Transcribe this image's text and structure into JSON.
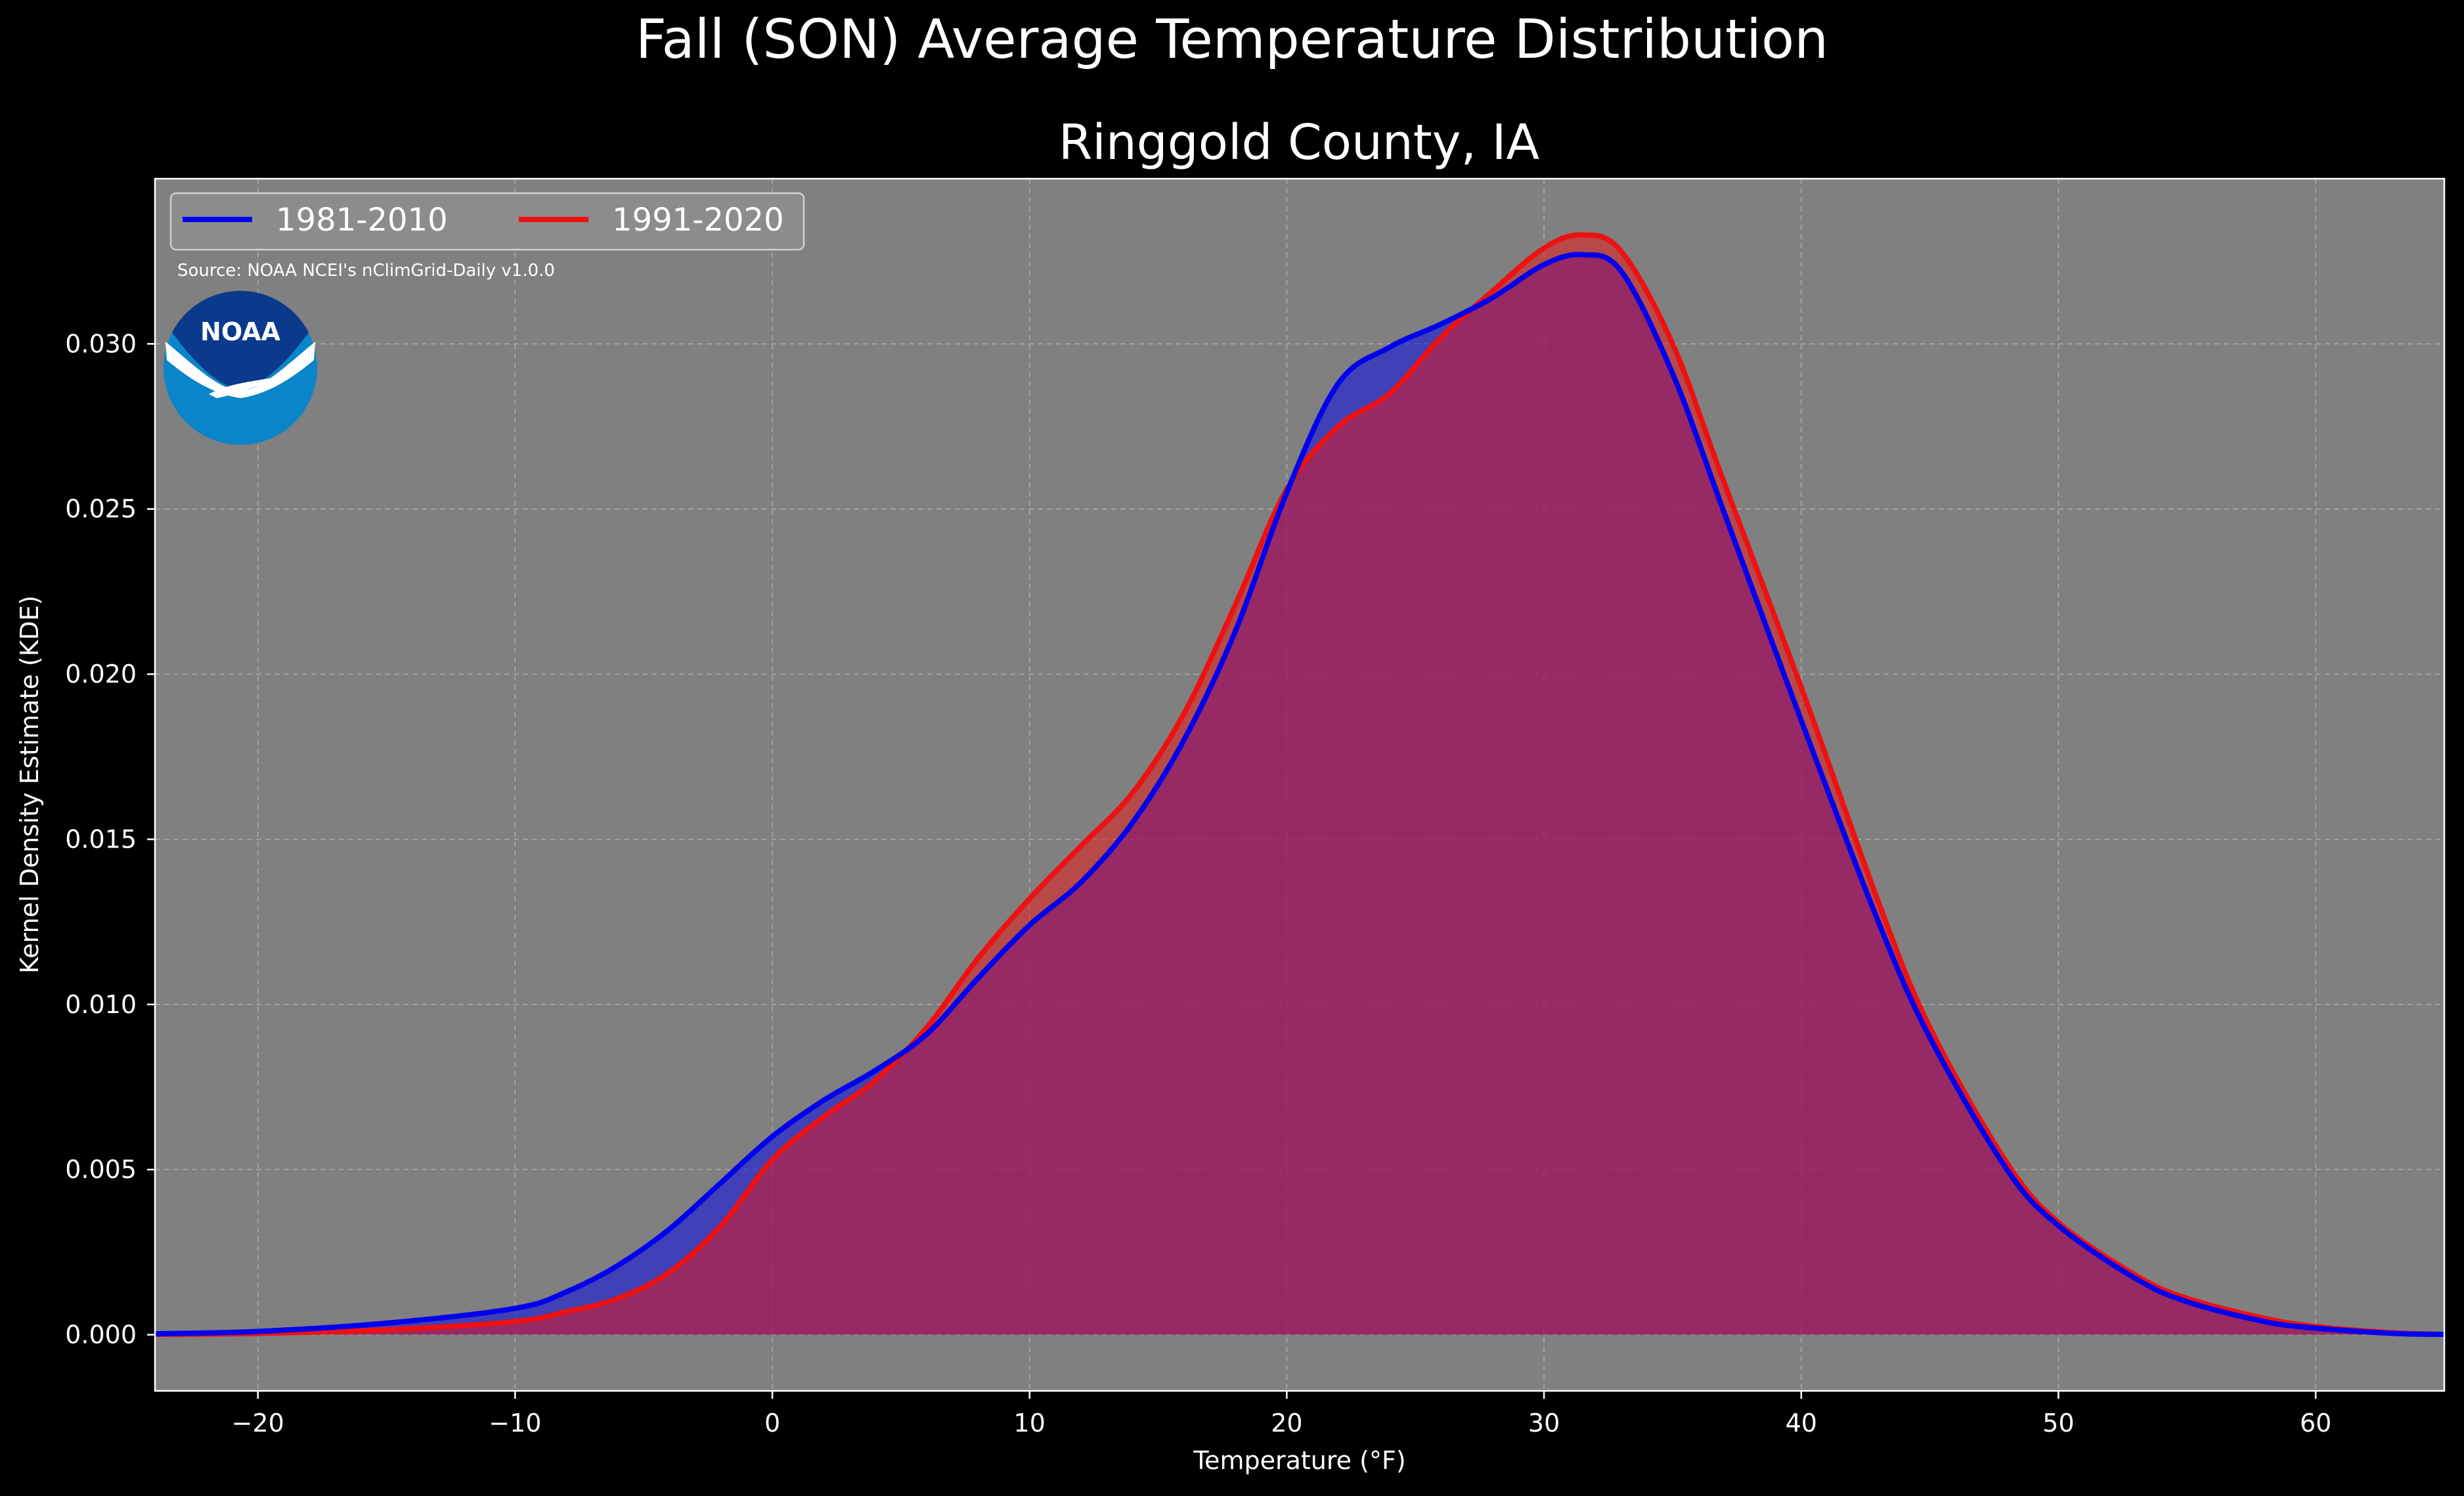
{
  "title": "Fall (SON) Average Temperature Distribution",
  "subtitle": "Ringgold County, IA",
  "source": "Source: NOAA NCEI's nClimGrid-Daily v1.0.0",
  "logo_text": "NOAA",
  "colors": {
    "background": "#000000",
    "plot_background": "#808080",
    "series_1981": "#0000ee",
    "series_1991": "#ee1111",
    "overlap_fill": "#9c1c5c"
  },
  "chart_data": {
    "type": "area",
    "title": "Ringgold County, IA",
    "xlabel": "Temperature (°F)",
    "ylabel": "Kernel Density Estimate (KDE)",
    "xlim": [
      -24,
      65
    ],
    "ylim": [
      -0.0017,
      0.035
    ],
    "grid": true,
    "legend_position": "top-left",
    "xticks": [
      -20,
      -10,
      0,
      10,
      20,
      30,
      40,
      50,
      60
    ],
    "xtick_labels": [
      "−20",
      "−10",
      "0",
      "10",
      "20",
      "30",
      "40",
      "50",
      "60"
    ],
    "yticks": [
      0.0,
      0.005,
      0.01,
      0.015,
      0.02,
      0.025,
      0.03
    ],
    "ytick_labels": [
      "0.000",
      "0.005",
      "0.010",
      "0.015",
      "0.020",
      "0.025",
      "0.030"
    ],
    "x": [
      -24,
      -20,
      -15,
      -10,
      -8,
      -6,
      -4,
      -2,
      0,
      2,
      4,
      6,
      8,
      10,
      12,
      14,
      16,
      18,
      20,
      22,
      24,
      26,
      28,
      30,
      31.5,
      33,
      35,
      37,
      40,
      43,
      45,
      48,
      50,
      53,
      55,
      58,
      60,
      63,
      65
    ],
    "series": [
      {
        "name": "1981-2010",
        "color": "#0000ee",
        "values": [
          3e-05,
          0.0001,
          0.00035,
          0.0008,
          0.0013,
          0.0021,
          0.0032,
          0.0046,
          0.006,
          0.0071,
          0.008,
          0.0091,
          0.0108,
          0.0124,
          0.0137,
          0.0155,
          0.018,
          0.0213,
          0.0255,
          0.0288,
          0.0299,
          0.0306,
          0.0314,
          0.0324,
          0.0327,
          0.0322,
          0.0291,
          0.0249,
          0.0186,
          0.0125,
          0.009,
          0.005,
          0.0033,
          0.0017,
          0.001,
          0.0004,
          0.0002,
          4e-05,
          1e-05
        ]
      },
      {
        "name": "1991-2020",
        "color": "#ee1111",
        "values": [
          1e-05,
          4e-05,
          0.00015,
          0.0004,
          0.0007,
          0.0011,
          0.0019,
          0.0033,
          0.0053,
          0.0066,
          0.0077,
          0.0093,
          0.0114,
          0.0132,
          0.0148,
          0.0164,
          0.0188,
          0.0221,
          0.0256,
          0.0275,
          0.0285,
          0.0302,
          0.0316,
          0.0329,
          0.0333,
          0.0328,
          0.03,
          0.0258,
          0.0196,
          0.0131,
          0.0093,
          0.0052,
          0.0034,
          0.0018,
          0.0011,
          0.0005,
          0.00025,
          6e-05,
          1e-05
        ]
      }
    ]
  }
}
